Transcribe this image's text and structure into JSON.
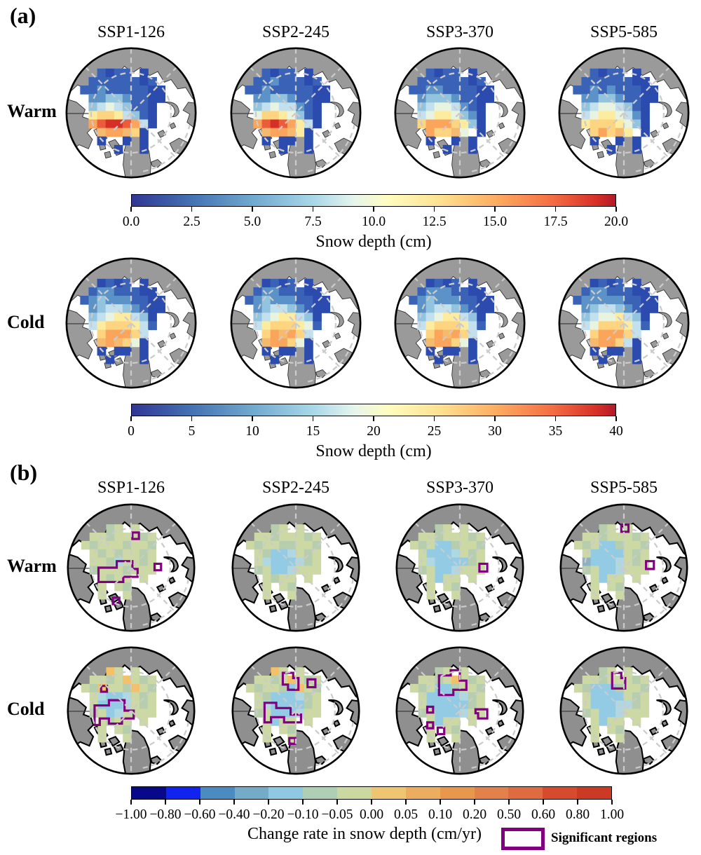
{
  "figure": {
    "panel_a": {
      "label": "(a)"
    },
    "panel_b": {
      "label": "(b)"
    },
    "scenarios": [
      "SSP1-126",
      "SSP2-245",
      "SSP3-370",
      "SSP5-585"
    ],
    "row_labels": [
      "Warm",
      "Cold"
    ],
    "colorbars": {
      "a": {
        "title": "Snow depth (cm)",
        "ticks": [
          "0.0",
          "2.5",
          "5.0",
          "7.5",
          "10.0",
          "12.5",
          "15.0",
          "17.5",
          "20.0"
        ]
      },
      "b": {
        "title": "Snow depth (cm)",
        "ticks": [
          "0",
          "5",
          "10",
          "15",
          "20",
          "25",
          "30",
          "35",
          "40"
        ]
      },
      "c": {
        "title": "Change rate in snow depth (cm/yr)",
        "ticks": [
          "−1.00",
          "−0.80",
          "−0.60",
          "−0.40",
          "−0.20",
          "−0.10",
          "−0.05",
          "0.00",
          "0.05",
          "0.10",
          "0.20",
          "0.50",
          "0.60",
          "0.80",
          "1.00"
        ]
      }
    },
    "legend": {
      "label": "Significant regions",
      "color": "#800080"
    }
  },
  "chart_data": {
    "type": "heatmap",
    "subtype": "polar-stereographic-maps",
    "title": "",
    "panels": [
      {
        "id": "a",
        "rows": [
          "Warm",
          "Cold"
        ],
        "columns": [
          "SSP1-126",
          "SSP2-245",
          "SSP3-370",
          "SSP5-585"
        ],
        "colorbar_warm": {
          "label": "Snow depth (cm)",
          "range": [
            0,
            20
          ],
          "tick_step": 2.5,
          "colormap": "RdYlBu_r"
        },
        "colorbar_cold": {
          "label": "Snow depth (cm)",
          "range": [
            0,
            40
          ],
          "tick_step": 5,
          "colormap": "RdYlBu_r"
        }
      },
      {
        "id": "b",
        "rows": [
          "Warm",
          "Cold"
        ],
        "columns": [
          "SSP1-126",
          "SSP2-245",
          "SSP3-370",
          "SSP5-585"
        ],
        "colorbar": {
          "label": "Change rate in snow depth (cm/yr)",
          "boundaries": [
            -1.0,
            -0.8,
            -0.6,
            -0.4,
            -0.2,
            -0.1,
            -0.05,
            0.0,
            0.05,
            0.1,
            0.2,
            0.5,
            0.6,
            0.8,
            1.0
          ],
          "segment_colors": [
            "#08088a",
            "#1023ef",
            "#4a8cc0",
            "#74abc8",
            "#8fc8e2",
            "#aecfb3",
            "#cbd9a0",
            "#efc571",
            "#ecae5e",
            "#e7984d",
            "#e28149",
            "#de6c40",
            "#d64b2e",
            "#cc3a26"
          ]
        },
        "significance_outline_color": "#800080"
      }
    ],
    "gradient_stops_rdylbu_r": [
      "#313695",
      "#4575b4",
      "#74add1",
      "#abd9e9",
      "#e6f5ec",
      "#fffdbf",
      "#fee090",
      "#fdae61",
      "#f46d43",
      "#d73027",
      "#b11a29"
    ],
    "cell_palette": {
      "1": "#2c4bae",
      "2": "#3a63b8",
      "3": "#5b92c8",
      "4": "#93c4df",
      "5": "#c3e0ee",
      "6": "#e9f4e0",
      "7": "#fdeb9e",
      "8": "#fdd47f",
      "9": "#fba55c",
      "r": "#ec5c3a",
      "R": "#d62f27",
      "t": "#f6ba6f",
      "g": "#cdd9a5",
      "h": "#b7ceae",
      "b": "#93cbe4",
      "c": "#b0d8e2",
      "o": "#f2c169",
      "d": "#8fb0c0"
    },
    "maps": [
      {
        "panel": "a",
        "row": "Warm",
        "scenario": "SSP1-126",
        "grid": [
          "..2122.1....",
          ".22222212...",
          "2232222211..",
          ".334432211..",
          ".45654221...",
          ".78875421...",
          ".9rRRr951...",
          "..t99t81....",
          "..1..1.1....",
          "....1..1...."
        ],
        "regions": []
      },
      {
        "panel": "a",
        "row": "Warm",
        "scenario": "SSP2-245",
        "grid": [
          "..2122.1....",
          ".22322212...",
          "2232222211..",
          ".334432211..",
          ".45655321...",
          ".68876421...",
          ".9rRr9751...",
          "..t99t71....",
          "..1.11.1....",
          "....1..1...."
        ],
        "regions": []
      },
      {
        "panel": "a",
        "row": "Warm",
        "scenario": "SSP3-370",
        "grid": [
          "..2122.1....",
          ".22222212...",
          "2233222211..",
          ".344432211..",
          ".45665321...",
          ".56776431...",
          ".89998741...",
          "..988t6.1...",
          "..1..1.1....",
          "....1..1...."
        ],
        "regions": []
      },
      {
        "panel": "a",
        "row": "Warm",
        "scenario": "SSP5-585",
        "grid": [
          "..2122.1....",
          ".22222211...",
          "2232322211..",
          ".334432211..",
          ".45665421...",
          ".56776531...",
          ".78887641...",
          "..898t7.1...",
          "..1..1.1....",
          "....1..1...."
        ],
        "regions": []
      },
      {
        "panel": "a",
        "row": "Cold",
        "scenario": "SSP1-126",
        "grid": [
          "..1212.1....",
          ".23322211...",
          "2343332211..",
          ".345543211..",
          ".45677541...",
          ".57888752...",
          "..899985....",
          "..t9t861....",
          "..1.11.1....",
          "...1...1...."
        ],
        "regions": []
      },
      {
        "panel": "a",
        "row": "Cold",
        "scenario": "SSP2-245",
        "grid": [
          "..1212.1....",
          ".23322211...",
          "2343332211..",
          ".345543211..",
          ".45677541...",
          ".57888762...",
          "..89t985....",
          "..t99861....",
          "..1.11.1....",
          "...1...1...."
        ],
        "regions": []
      },
      {
        "panel": "a",
        "row": "Cold",
        "scenario": "SSP3-370",
        "grid": [
          "..1212.1....",
          ".23332211...",
          "2343332211..",
          ".345543211..",
          ".45677541...",
          ".57888752...",
          "..89t985....",
          "..t99861....",
          "..1.11.1....",
          "...1...1...."
        ],
        "regions": []
      },
      {
        "panel": "a",
        "row": "Cold",
        "scenario": "SSP5-585",
        "grid": [
          "..1212.1....",
          ".23322211...",
          "2333332211..",
          ".345543211..",
          ".45667541...",
          ".56888752...",
          "..899985....",
          "..t99851....",
          "..1.11.1....",
          "...1...1...."
        ],
        "regions": []
      },
      {
        "panel": "b",
        "row": "Warm",
        "scenario": "SSP1-126",
        "grid": [
          "...hg.g.....",
          ".gghggghg...",
          "ghggghggh...",
          ".ghghgghg...",
          ".gghcgghg...",
          ".hggghggg...",
          "..ghgg.g....",
          "..g.gh......",
          "..g..g......",
          "............"
        ],
        "regions": [
          {
            "type": "square",
            "x": 2,
            "y": -54,
            "s": 10
          },
          {
            "type": "poly",
            "pts": [
              [
                -50,
                0
              ],
              [
                -22,
                0
              ],
              [
                -22,
                -10
              ],
              [
                2,
                -10
              ],
              [
                2,
                2
              ],
              [
                10,
                2
              ],
              [
                10,
                14
              ],
              [
                -12,
                14
              ],
              [
                -12,
                22
              ],
              [
                -50,
                22
              ]
            ]
          },
          {
            "type": "square",
            "x": 36,
            "y": -6,
            "s": 10
          },
          {
            "type": "square",
            "x": -28,
            "y": 46,
            "s": 10
          }
        ]
      },
      {
        "panel": "b",
        "row": "Warm",
        "scenario": "SSP2-245",
        "grid": [
          "...hg.g.....",
          ".gghggghg...",
          "ghgghhggh...",
          ".ghbbcghg...",
          ".gcbbbchg...",
          ".hgbbcggg...",
          "..ghgg.g....",
          "..g.gh......",
          "..g..g......",
          "............"
        ],
        "regions": []
      },
      {
        "panel": "b",
        "row": "Warm",
        "scenario": "SSP3-370",
        "grid": [
          "...hg.g.....",
          ".gghggghg...",
          "ghgbbhggh...",
          ".gbbbcghg...",
          ".gcbbbbhg...",
          ".hgbbcggg...",
          "..gbgg.g....",
          "..g.gh......",
          "..g..g......",
          "............"
        ],
        "regions": [
          {
            "type": "square",
            "x": 30,
            "y": -6,
            "s": 12
          }
        ]
      },
      {
        "panel": "b",
        "row": "Warm",
        "scenario": "SSP5-585",
        "grid": [
          "...hg.g.....",
          ".gghggghg...",
          "ghgbbhggh...",
          ".gbbbbghg...",
          ".dbbbcghg...",
          ".hgbbcggg...",
          "..gbgg.g....",
          "..g.gh......",
          "..g..g......",
          "............"
        ],
        "regions": [
          {
            "type": "square",
            "x": -4,
            "y": -66,
            "s": 11
          },
          {
            "type": "square",
            "x": 34,
            "y": -10,
            "s": 12
          }
        ]
      },
      {
        "panel": "b",
        "row": "Cold",
        "scenario": "SSP1-126",
        "grid": [
          "...og.g.....",
          ".gghgoghg...",
          "ghogghogh...",
          ".gcbbcghg...",
          ".gbbbcghg...",
          ".hgbcgggg...",
          "..ghgg.g....",
          "..g.gh......",
          "..g..g......",
          "............"
        ],
        "regions": [
          {
            "type": "square",
            "x": -46,
            "y": -38,
            "s": 9
          },
          {
            "type": "poly",
            "pts": [
              [
                -56,
                -8
              ],
              [
                -34,
                -8
              ],
              [
                -34,
                -16
              ],
              [
                -10,
                -16
              ],
              [
                -10,
                0
              ],
              [
                4,
                0
              ],
              [
                4,
                12
              ],
              [
                -14,
                12
              ],
              [
                -14,
                20
              ],
              [
                -34,
                20
              ],
              [
                -34,
                12
              ],
              [
                -48,
                12
              ],
              [
                -48,
                22
              ],
              [
                -56,
                22
              ]
            ]
          }
        ]
      },
      {
        "panel": "b",
        "row": "Cold",
        "scenario": "SSP2-245",
        "grid": [
          "...og.g.....",
          ".gghgoghg...",
          "ghgghbogh...",
          ".ghbbbchg...",
          ".gcbbbbhg...",
          ".hgbbbcgg...",
          "..gbgg.g....",
          "..g.gh......",
          "..g..g......",
          "............"
        ],
        "regions": [
          {
            "type": "poly",
            "pts": [
              [
                -20,
                -58
              ],
              [
                -4,
                -58
              ],
              [
                -4,
                -50
              ],
              [
                4,
                -50
              ],
              [
                4,
                -32
              ],
              [
                -12,
                -32
              ],
              [
                -12,
                -40
              ],
              [
                -20,
                -40
              ]
            ]
          },
          {
            "type": "square",
            "x": 18,
            "y": -48,
            "s": 12
          },
          {
            "type": "poly",
            "pts": [
              [
                -48,
                -12
              ],
              [
                -30,
                -12
              ],
              [
                -30,
                -4
              ],
              [
                -8,
                -4
              ],
              [
                -8,
                6
              ],
              [
                8,
                6
              ],
              [
                8,
                18
              ],
              [
                -18,
                18
              ],
              [
                -18,
                10
              ],
              [
                -38,
                10
              ],
              [
                -38,
                18
              ],
              [
                -48,
                18
              ]
            ]
          },
          {
            "type": "square",
            "x": -10,
            "y": 42,
            "s": 9
          }
        ]
      },
      {
        "panel": "b",
        "row": "Cold",
        "scenario": "SSP3-370",
        "grid": [
          "...hg.g.....",
          ".gghgoghg...",
          "ghgbbhggh...",
          ".gbbbbchg...",
          ".gbbbbbhg...",
          ".hgbbbcgg...",
          "..gbgg.g....",
          "..g.gh......",
          "..g..g......",
          "............"
        ],
        "regions": [
          {
            "type": "poly",
            "pts": [
              [
                -32,
                -54
              ],
              [
                -14,
                -54
              ],
              [
                -14,
                -62
              ],
              [
                0,
                -62
              ],
              [
                0,
                -46
              ],
              [
                10,
                -46
              ],
              [
                10,
                -32
              ],
              [
                -10,
                -32
              ],
              [
                -10,
                -24
              ],
              [
                -32,
                -24
              ]
            ]
          },
          {
            "type": "square",
            "x": -50,
            "y": -6,
            "s": 9
          },
          {
            "type": "square",
            "x": -50,
            "y": 18,
            "s": 9
          },
          {
            "type": "square",
            "x": -34,
            "y": 26,
            "s": 10
          },
          {
            "type": "poly",
            "pts": [
              [
                24,
                -2
              ],
              [
                42,
                -2
              ],
              [
                42,
                12
              ],
              [
                28,
                12
              ],
              [
                28,
                4
              ],
              [
                24,
                4
              ]
            ]
          }
        ]
      },
      {
        "panel": "b",
        "row": "Cold",
        "scenario": "SSP5-585",
        "grid": [
          "...hg.g.....",
          ".gghggghg...",
          "ghbbbhggh...",
          ".gbbbbghg...",
          ".gbbbcchg...",
          ".hgbbcggg...",
          "..gbgg.g....",
          "..g.gh......",
          "..g..g......",
          "............"
        ],
        "regions": [
          {
            "type": "poly",
            "pts": [
              [
                -18,
                -58
              ],
              [
                -4,
                -58
              ],
              [
                -4,
                -50
              ],
              [
                2,
                -50
              ],
              [
                2,
                -34
              ],
              [
                -18,
                -34
              ]
            ]
          }
        ]
      }
    ]
  }
}
